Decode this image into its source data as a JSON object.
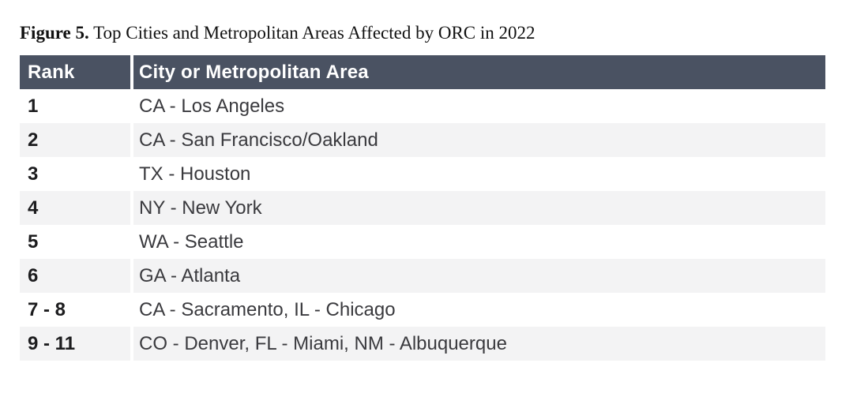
{
  "figure": {
    "label": "Figure 5.",
    "caption": " Top Cities and Metropolitan Areas Affected by ORC in 2022"
  },
  "table": {
    "columns": [
      "Rank",
      "City or Metropolitan Area"
    ],
    "rows": [
      {
        "rank": "1",
        "city": "CA - Los Angeles"
      },
      {
        "rank": "2",
        "city": "CA - San Francisco/Oakland"
      },
      {
        "rank": "3",
        "city": "TX - Houston"
      },
      {
        "rank": "4",
        "city": "NY - New York"
      },
      {
        "rank": "5",
        "city": "WA - Seattle"
      },
      {
        "rank": "6",
        "city": "GA - Atlanta"
      },
      {
        "rank": "7 - 8",
        "city": "CA - Sacramento, IL - Chicago"
      },
      {
        "rank": "9 - 11",
        "city": "CO - Denver, FL - Miami, NM - Albuquerque"
      }
    ]
  },
  "colors": {
    "header_bg": "#4A5262",
    "stripe_bg": "#F3F3F4",
    "header_text": "#FFFFFF",
    "body_text": "#3A3A3E",
    "rank_text": "#1C1C1E",
    "title_text": "#111111",
    "page_bg": "#FFFFFF"
  }
}
